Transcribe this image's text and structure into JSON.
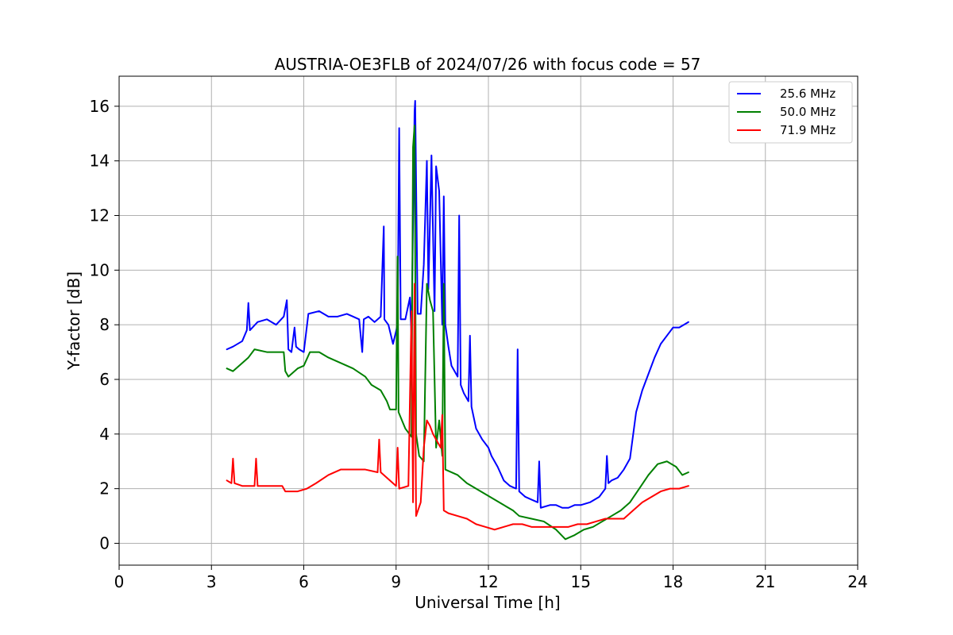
{
  "chart_data": {
    "type": "line",
    "title": "AUSTRIA-OE3FLB of 2024/07/26 with focus code = 57",
    "xlabel": "Universal Time [h]",
    "ylabel": "Y-factor [dB]",
    "xlim": [
      0,
      24
    ],
    "ylim": [
      -0.8,
      17.1
    ],
    "xticks": [
      0,
      3,
      6,
      9,
      12,
      15,
      18,
      21,
      24
    ],
    "yticks": [
      0,
      2,
      4,
      6,
      8,
      10,
      12,
      14,
      16
    ],
    "x_tick_labels": [
      "0",
      "3",
      "6",
      "9",
      "12",
      "15",
      "18",
      "21",
      "24"
    ],
    "y_tick_labels": [
      "0",
      "2",
      "4",
      "6",
      "8",
      "10",
      "12",
      "14",
      "16"
    ],
    "grid": true,
    "legend_position": "top-right",
    "series": [
      {
        "name": "25.6 MHz",
        "color": "#0000ff",
        "points": [
          [
            3.5,
            7.1
          ],
          [
            3.7,
            7.2
          ],
          [
            4.0,
            7.4
          ],
          [
            4.15,
            7.8
          ],
          [
            4.2,
            8.8
          ],
          [
            4.25,
            7.8
          ],
          [
            4.5,
            8.1
          ],
          [
            4.8,
            8.2
          ],
          [
            5.1,
            8.0
          ],
          [
            5.35,
            8.3
          ],
          [
            5.45,
            8.9
          ],
          [
            5.5,
            7.1
          ],
          [
            5.6,
            7.0
          ],
          [
            5.7,
            7.9
          ],
          [
            5.75,
            7.2
          ],
          [
            5.85,
            7.1
          ],
          [
            6.0,
            7.0
          ],
          [
            6.15,
            8.4
          ],
          [
            6.5,
            8.5
          ],
          [
            6.8,
            8.3
          ],
          [
            7.1,
            8.3
          ],
          [
            7.4,
            8.4
          ],
          [
            7.6,
            8.3
          ],
          [
            7.8,
            8.2
          ],
          [
            7.9,
            7.0
          ],
          [
            7.95,
            8.2
          ],
          [
            8.1,
            8.3
          ],
          [
            8.3,
            8.1
          ],
          [
            8.5,
            8.3
          ],
          [
            8.6,
            11.6
          ],
          [
            8.62,
            8.2
          ],
          [
            8.75,
            8.0
          ],
          [
            8.9,
            7.3
          ],
          [
            9.05,
            8.0
          ],
          [
            9.1,
            15.2
          ],
          [
            9.15,
            8.2
          ],
          [
            9.3,
            8.2
          ],
          [
            9.45,
            9.0
          ],
          [
            9.5,
            7.6
          ],
          [
            9.6,
            15.8
          ],
          [
            9.62,
            16.2
          ],
          [
            9.7,
            8.4
          ],
          [
            9.8,
            8.4
          ],
          [
            9.9,
            10.2
          ],
          [
            10.0,
            14.0
          ],
          [
            10.05,
            9.3
          ],
          [
            10.15,
            14.2
          ],
          [
            10.25,
            8.5
          ],
          [
            10.3,
            13.8
          ],
          [
            10.4,
            12.9
          ],
          [
            10.5,
            8.0
          ],
          [
            10.55,
            12.7
          ],
          [
            10.6,
            8.0
          ],
          [
            10.7,
            7.2
          ],
          [
            10.8,
            6.5
          ],
          [
            10.9,
            6.3
          ],
          [
            11.0,
            6.1
          ],
          [
            11.05,
            12.0
          ],
          [
            11.1,
            5.8
          ],
          [
            11.2,
            5.5
          ],
          [
            11.35,
            5.2
          ],
          [
            11.4,
            7.6
          ],
          [
            11.45,
            5.0
          ],
          [
            11.6,
            4.2
          ],
          [
            11.8,
            3.8
          ],
          [
            12.0,
            3.5
          ],
          [
            12.1,
            3.2
          ],
          [
            12.3,
            2.8
          ],
          [
            12.5,
            2.3
          ],
          [
            12.7,
            2.1
          ],
          [
            12.9,
            2.0
          ],
          [
            12.95,
            7.1
          ],
          [
            13.0,
            1.9
          ],
          [
            13.2,
            1.7
          ],
          [
            13.4,
            1.6
          ],
          [
            13.6,
            1.5
          ],
          [
            13.65,
            3.0
          ],
          [
            13.7,
            1.3
          ],
          [
            14.0,
            1.4
          ],
          [
            14.2,
            1.4
          ],
          [
            14.4,
            1.3
          ],
          [
            14.6,
            1.3
          ],
          [
            14.8,
            1.4
          ],
          [
            15.0,
            1.4
          ],
          [
            15.3,
            1.5
          ],
          [
            15.6,
            1.7
          ],
          [
            15.8,
            2.0
          ],
          [
            15.85,
            3.2
          ],
          [
            15.9,
            2.2
          ],
          [
            16.0,
            2.3
          ],
          [
            16.2,
            2.4
          ],
          [
            16.4,
            2.7
          ],
          [
            16.6,
            3.1
          ],
          [
            16.8,
            4.8
          ],
          [
            17.0,
            5.6
          ],
          [
            17.2,
            6.2
          ],
          [
            17.4,
            6.8
          ],
          [
            17.6,
            7.3
          ],
          [
            17.8,
            7.6
          ],
          [
            18.0,
            7.9
          ],
          [
            18.2,
            7.9
          ],
          [
            18.5,
            8.1
          ]
        ]
      },
      {
        "name": "50.0 MHz",
        "color": "#008000",
        "points": [
          [
            3.5,
            6.4
          ],
          [
            3.7,
            6.3
          ],
          [
            4.0,
            6.6
          ],
          [
            4.2,
            6.8
          ],
          [
            4.4,
            7.1
          ],
          [
            4.8,
            7.0
          ],
          [
            5.1,
            7.0
          ],
          [
            5.35,
            7.0
          ],
          [
            5.4,
            6.3
          ],
          [
            5.5,
            6.1
          ],
          [
            5.8,
            6.4
          ],
          [
            6.0,
            6.5
          ],
          [
            6.2,
            7.0
          ],
          [
            6.5,
            7.0
          ],
          [
            6.8,
            6.8
          ],
          [
            7.2,
            6.6
          ],
          [
            7.6,
            6.4
          ],
          [
            8.0,
            6.1
          ],
          [
            8.2,
            5.8
          ],
          [
            8.5,
            5.6
          ],
          [
            8.7,
            5.2
          ],
          [
            8.8,
            4.9
          ],
          [
            9.0,
            4.9
          ],
          [
            9.05,
            10.5
          ],
          [
            9.08,
            4.8
          ],
          [
            9.3,
            4.2
          ],
          [
            9.5,
            3.9
          ],
          [
            9.55,
            14.5
          ],
          [
            9.6,
            15.3
          ],
          [
            9.65,
            4.0
          ],
          [
            9.75,
            3.2
          ],
          [
            9.9,
            3.0
          ],
          [
            10.0,
            9.5
          ],
          [
            10.1,
            8.9
          ],
          [
            10.2,
            8.5
          ],
          [
            10.3,
            3.5
          ],
          [
            10.4,
            4.5
          ],
          [
            10.5,
            3.2
          ],
          [
            10.55,
            9.5
          ],
          [
            10.6,
            2.7
          ],
          [
            11.0,
            2.5
          ],
          [
            11.3,
            2.2
          ],
          [
            11.6,
            2.0
          ],
          [
            11.9,
            1.8
          ],
          [
            12.2,
            1.6
          ],
          [
            12.5,
            1.4
          ],
          [
            12.8,
            1.2
          ],
          [
            13.0,
            1.0
          ],
          [
            13.4,
            0.9
          ],
          [
            13.8,
            0.8
          ],
          [
            14.2,
            0.5
          ],
          [
            14.5,
            0.15
          ],
          [
            14.8,
            0.3
          ],
          [
            15.1,
            0.5
          ],
          [
            15.4,
            0.6
          ],
          [
            15.7,
            0.8
          ],
          [
            16.0,
            1.0
          ],
          [
            16.3,
            1.2
          ],
          [
            16.6,
            1.5
          ],
          [
            16.9,
            2.0
          ],
          [
            17.2,
            2.5
          ],
          [
            17.5,
            2.9
          ],
          [
            17.8,
            3.0
          ],
          [
            18.1,
            2.8
          ],
          [
            18.3,
            2.5
          ],
          [
            18.5,
            2.6
          ]
        ]
      },
      {
        "name": "71.9 MHz",
        "color": "#ff0000",
        "points": [
          [
            3.5,
            2.3
          ],
          [
            3.65,
            2.2
          ],
          [
            3.7,
            3.1
          ],
          [
            3.75,
            2.2
          ],
          [
            4.0,
            2.1
          ],
          [
            4.4,
            2.1
          ],
          [
            4.45,
            3.1
          ],
          [
            4.5,
            2.1
          ],
          [
            5.0,
            2.1
          ],
          [
            5.3,
            2.1
          ],
          [
            5.4,
            1.9
          ],
          [
            5.8,
            1.9
          ],
          [
            6.1,
            2.0
          ],
          [
            6.4,
            2.2
          ],
          [
            6.8,
            2.5
          ],
          [
            7.2,
            2.7
          ],
          [
            7.6,
            2.7
          ],
          [
            8.0,
            2.7
          ],
          [
            8.4,
            2.6
          ],
          [
            8.45,
            3.8
          ],
          [
            8.5,
            2.6
          ],
          [
            8.7,
            2.4
          ],
          [
            9.0,
            2.1
          ],
          [
            9.05,
            3.5
          ],
          [
            9.1,
            2.0
          ],
          [
            9.4,
            2.1
          ],
          [
            9.5,
            8.5
          ],
          [
            9.55,
            1.5
          ],
          [
            9.6,
            9.5
          ],
          [
            9.65,
            1.0
          ],
          [
            9.8,
            1.5
          ],
          [
            9.9,
            3.5
          ],
          [
            10.0,
            4.5
          ],
          [
            10.1,
            4.3
          ],
          [
            10.2,
            4.0
          ],
          [
            10.3,
            3.8
          ],
          [
            10.45,
            3.5
          ],
          [
            10.5,
            4.7
          ],
          [
            10.55,
            1.2
          ],
          [
            10.7,
            1.1
          ],
          [
            11.0,
            1.0
          ],
          [
            11.3,
            0.9
          ],
          [
            11.6,
            0.7
          ],
          [
            11.9,
            0.6
          ],
          [
            12.2,
            0.5
          ],
          [
            12.5,
            0.6
          ],
          [
            12.8,
            0.7
          ],
          [
            13.1,
            0.7
          ],
          [
            13.4,
            0.6
          ],
          [
            13.7,
            0.6
          ],
          [
            14.0,
            0.6
          ],
          [
            14.3,
            0.6
          ],
          [
            14.6,
            0.6
          ],
          [
            14.9,
            0.7
          ],
          [
            15.2,
            0.7
          ],
          [
            15.5,
            0.8
          ],
          [
            15.8,
            0.9
          ],
          [
            16.1,
            0.9
          ],
          [
            16.4,
            0.9
          ],
          [
            16.7,
            1.2
          ],
          [
            17.0,
            1.5
          ],
          [
            17.3,
            1.7
          ],
          [
            17.6,
            1.9
          ],
          [
            17.9,
            2.0
          ],
          [
            18.2,
            2.0
          ],
          [
            18.5,
            2.1
          ]
        ]
      }
    ]
  }
}
